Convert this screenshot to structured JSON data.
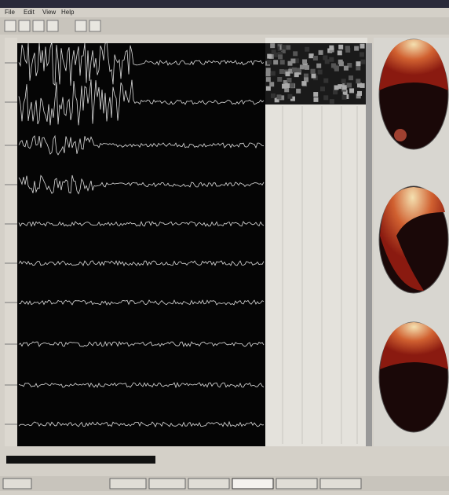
{
  "menu": {
    "items": [
      "File",
      "Edit",
      "View",
      "Help"
    ]
  }
}
